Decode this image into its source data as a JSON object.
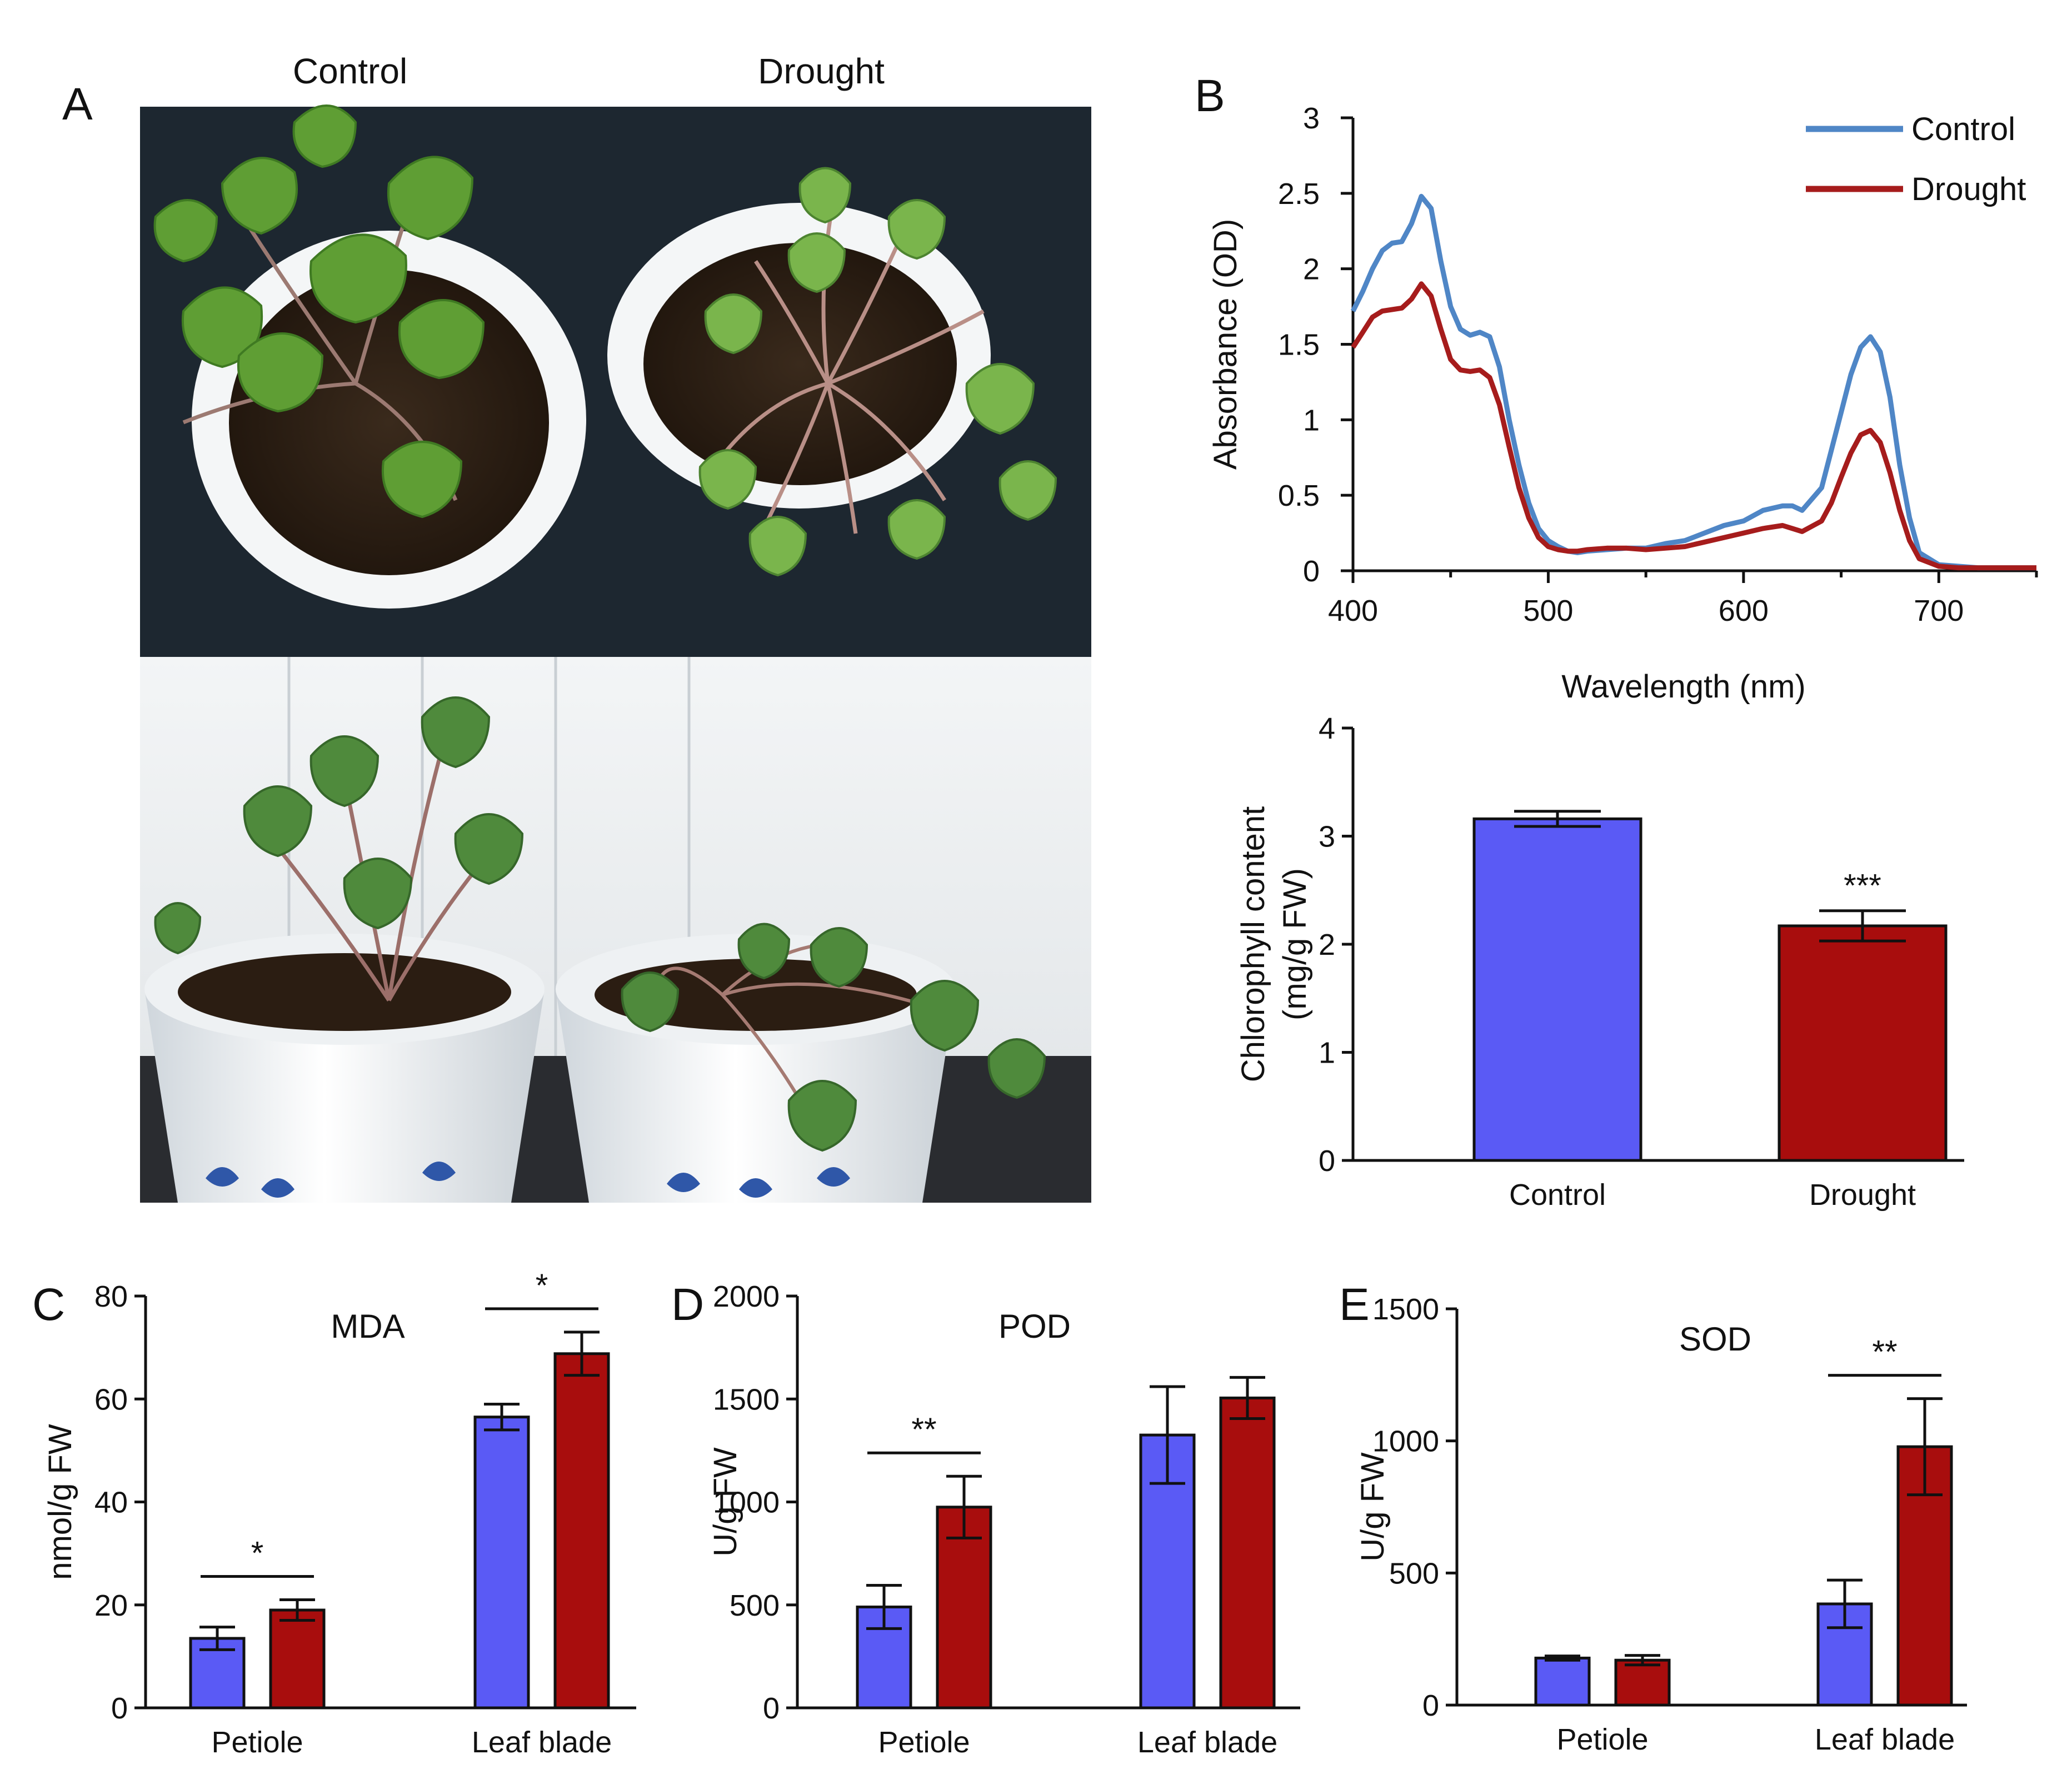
{
  "panels": {
    "a": "A",
    "b": "B",
    "c": "C",
    "d": "D",
    "e": "E"
  },
  "photos": {
    "control_label": "Control",
    "drought_label": "Drought",
    "top_view": "Top view of potted plants, control vs drought",
    "side_view": "Side view of potted plants, control vs drought"
  },
  "colors": {
    "control_line": "#4f86c6",
    "drought_line": "#a61c1c",
    "control_bar": "#5a5af5",
    "drought_bar": "#a80d0d"
  },
  "chart_data": [
    {
      "id": "spectrum",
      "type": "line",
      "xlabel": "Wavelength (nm)",
      "ylabel": "Absorbance (OD)",
      "xlim": [
        400,
        750
      ],
      "ylim": [
        0,
        3
      ],
      "xticks": [
        400,
        500,
        600,
        700
      ],
      "yticks": [
        0,
        0.5,
        1,
        1.5,
        2,
        2.5,
        3
      ],
      "ytick_labels": [
        "0",
        "0.5",
        "1",
        "1.5",
        "2",
        "2.5",
        "3"
      ],
      "legend": [
        "Control",
        "Drought"
      ],
      "legend_position": "top-right",
      "series": [
        {
          "name": "Control",
          "color": "#4f86c6",
          "x": [
            400,
            405,
            410,
            415,
            420,
            425,
            430,
            435,
            440,
            445,
            450,
            455,
            460,
            465,
            470,
            475,
            480,
            485,
            490,
            495,
            500,
            505,
            510,
            515,
            520,
            530,
            540,
            550,
            560,
            570,
            580,
            590,
            600,
            610,
            620,
            625,
            630,
            640,
            645,
            650,
            655,
            660,
            665,
            670,
            675,
            680,
            685,
            690,
            700,
            710,
            720,
            730,
            740,
            750
          ],
          "y": [
            1.72,
            1.85,
            2.0,
            2.12,
            2.17,
            2.18,
            2.3,
            2.48,
            2.4,
            2.05,
            1.75,
            1.6,
            1.56,
            1.58,
            1.55,
            1.35,
            1.0,
            0.7,
            0.45,
            0.28,
            0.2,
            0.16,
            0.13,
            0.12,
            0.13,
            0.14,
            0.15,
            0.15,
            0.18,
            0.2,
            0.25,
            0.3,
            0.33,
            0.4,
            0.43,
            0.43,
            0.4,
            0.55,
            0.8,
            1.05,
            1.3,
            1.48,
            1.55,
            1.45,
            1.15,
            0.7,
            0.35,
            0.12,
            0.04,
            0.03,
            0.02,
            0.02,
            0.02,
            0.02
          ]
        },
        {
          "name": "Drought",
          "color": "#a61c1c",
          "x": [
            400,
            405,
            410,
            415,
            420,
            425,
            430,
            435,
            440,
            445,
            450,
            455,
            460,
            465,
            470,
            475,
            480,
            485,
            490,
            495,
            500,
            505,
            510,
            515,
            520,
            530,
            540,
            550,
            560,
            570,
            580,
            590,
            600,
            610,
            620,
            625,
            630,
            640,
            645,
            650,
            655,
            660,
            665,
            670,
            675,
            680,
            685,
            690,
            700,
            710,
            720,
            730,
            740,
            750
          ],
          "y": [
            1.48,
            1.58,
            1.68,
            1.72,
            1.73,
            1.74,
            1.8,
            1.9,
            1.82,
            1.6,
            1.4,
            1.33,
            1.32,
            1.33,
            1.28,
            1.1,
            0.82,
            0.55,
            0.35,
            0.22,
            0.16,
            0.14,
            0.13,
            0.13,
            0.14,
            0.15,
            0.15,
            0.14,
            0.15,
            0.16,
            0.19,
            0.22,
            0.25,
            0.28,
            0.3,
            0.28,
            0.26,
            0.33,
            0.45,
            0.62,
            0.78,
            0.9,
            0.93,
            0.85,
            0.65,
            0.4,
            0.2,
            0.08,
            0.03,
            0.02,
            0.02,
            0.02,
            0.02,
            0.02
          ]
        }
      ]
    },
    {
      "id": "chlorophyll",
      "type": "bar",
      "ylabel_line1": "Chlorophyll content",
      "ylabel_line2": "(mg/g FW)",
      "ylim": [
        0,
        4
      ],
      "yticks": [
        0,
        1,
        2,
        3,
        4
      ],
      "categories": [
        "Control",
        "Drought"
      ],
      "values": [
        3.16,
        2.17
      ],
      "errors": [
        0.07,
        0.14
      ],
      "significance": [
        "",
        "***"
      ]
    },
    {
      "id": "mda",
      "type": "bar",
      "title": "MDA",
      "ylabel": "nmol/g FW",
      "ylim": [
        0,
        80
      ],
      "yticks": [
        0,
        20,
        40,
        60,
        80
      ],
      "categories": [
        "Petiole",
        "Leaf blade"
      ],
      "series": [
        {
          "name": "Control",
          "values": [
            13.5,
            56.5
          ],
          "errors": [
            2.2,
            2.5
          ]
        },
        {
          "name": "Drought",
          "values": [
            19.0,
            68.8
          ],
          "errors": [
            2.0,
            4.2
          ]
        }
      ],
      "significance": [
        "*",
        "*"
      ]
    },
    {
      "id": "pod",
      "type": "bar",
      "title": "POD",
      "ylabel": "U/g FW",
      "ylim": [
        0,
        2000
      ],
      "yticks": [
        0,
        500,
        1000,
        1500,
        2000
      ],
      "categories": [
        "Petiole",
        "Leaf blade"
      ],
      "series": [
        {
          "name": "Control",
          "values": [
            490,
            1325
          ],
          "errors": [
            105,
            235
          ]
        },
        {
          "name": "Drought",
          "values": [
            975,
            1505
          ],
          "errors": [
            150,
            100
          ]
        }
      ],
      "significance": [
        "**",
        ""
      ]
    },
    {
      "id": "sod",
      "type": "bar",
      "title": "SOD",
      "ylabel": "U/g FW",
      "ylim": [
        0,
        1500
      ],
      "yticks": [
        0,
        500,
        1000,
        1500
      ],
      "categories": [
        "Petiole",
        "Leaf blade"
      ],
      "series": [
        {
          "name": "Control",
          "values": [
            178,
            383
          ],
          "errors": [
            8,
            90
          ]
        },
        {
          "name": "Drought",
          "values": [
            170,
            978
          ],
          "errors": [
            18,
            182
          ]
        }
      ],
      "significance": [
        "",
        "**"
      ]
    }
  ]
}
